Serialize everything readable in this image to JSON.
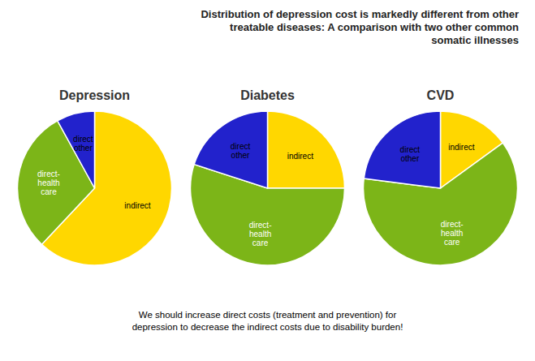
{
  "title": "Distribution of depression cost is markedly different from other\ntreatable diseases: A comparison with two other common\nsomatic illnesses",
  "subtitle": "We should increase direct costs (treatment and prevention) for\ndepression to decrease the indirect costs due to disability burden!",
  "chart_data": [
    {
      "type": "pie",
      "title": "Depression",
      "categories": [
        "indirect",
        "direct-\nhealth\ncare",
        "direct\nother"
      ],
      "values": [
        62,
        30,
        8
      ],
      "colors": [
        "#FFD700",
        "#7CB518",
        "#2222CC"
      ]
    },
    {
      "type": "pie",
      "title": "Diabetes",
      "categories": [
        "indirect",
        "direct-\nhealth\ncare",
        "direct\nother"
      ],
      "values": [
        25,
        55,
        20
      ],
      "colors": [
        "#FFD700",
        "#7CB518",
        "#2222CC"
      ]
    },
    {
      "type": "pie",
      "title": "CVD",
      "categories": [
        "indirect",
        "direct-\nhealth\ncare",
        "direct\nother"
      ],
      "values": [
        15,
        62,
        23
      ],
      "colors": [
        "#FFD700",
        "#7CB518",
        "#2222CC"
      ]
    }
  ]
}
